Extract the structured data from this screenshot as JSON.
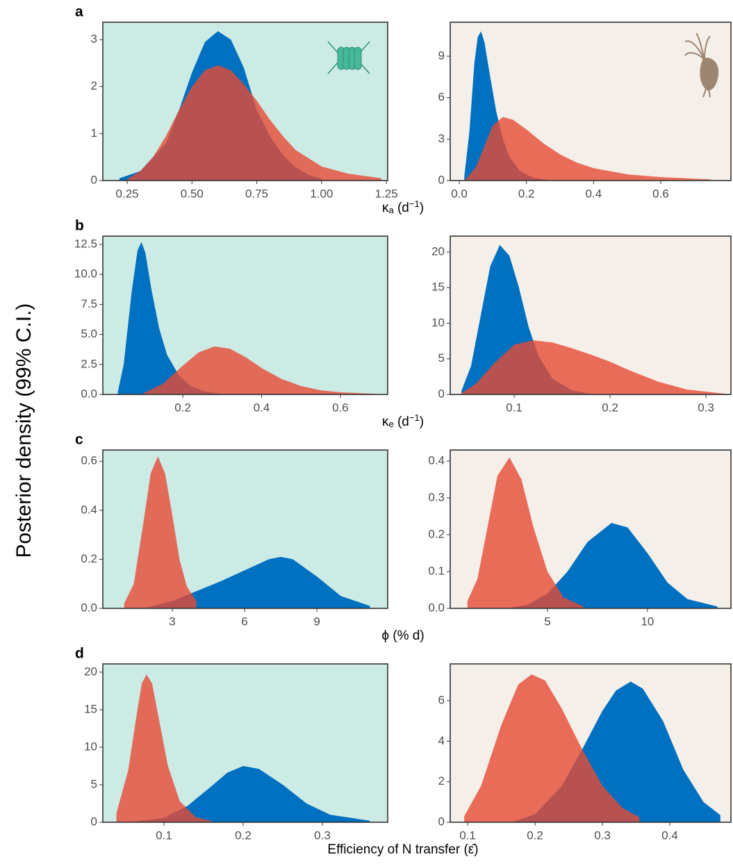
{
  "ylabel": "Posterior density (99% C.I.)",
  "row_labels": [
    "a",
    "b",
    "c",
    "d"
  ],
  "row_xlabels": [
    [
      {
        "text": "κ"
      },
      {
        "text": "a",
        "style": "sub"
      },
      {
        "text": " (d"
      },
      {
        "text": "−1",
        "style": "sup"
      },
      {
        "text": ")"
      }
    ],
    [
      {
        "text": "κ"
      },
      {
        "text": "e",
        "style": "sub"
      },
      {
        "text": " (d"
      },
      {
        "text": "−1",
        "style": "sup"
      },
      {
        "text": ")"
      }
    ],
    [
      {
        "text": "ϕ (% d)"
      }
    ],
    [
      {
        "text": "Efficiency of N transfer (ε̄)"
      }
    ]
  ],
  "chart_data": [
    {
      "type": "area",
      "background": "#cdebe5",
      "xlim": [
        0.156,
        1.255
      ],
      "ylim": [
        0,
        3.37
      ],
      "xticks": [
        {
          "value": 0.25,
          "label": "0.25"
        },
        {
          "value": 0.5,
          "label": "0.50"
        },
        0.75,
        {
          "value": 1,
          "label": "1.00"
        },
        1.25
      ],
      "yticks": [
        0,
        1,
        2,
        3
      ],
      "series": [
        {
          "color": "#0070c0",
          "x": [
            0.22,
            0.3,
            0.4,
            0.45,
            0.5,
            0.55,
            0.6,
            0.65,
            0.7,
            0.75,
            0.8,
            0.85,
            0.9,
            0.95,
            1.0
          ],
          "values": [
            0.05,
            0.2,
            0.8,
            1.5,
            2.3,
            2.95,
            3.18,
            3.0,
            2.4,
            1.5,
            0.95,
            0.55,
            0.28,
            0.12,
            0.04
          ]
        },
        {
          "color": "#e64b35",
          "x": [
            0.25,
            0.3,
            0.35,
            0.4,
            0.45,
            0.5,
            0.55,
            0.6,
            0.65,
            0.7,
            0.75,
            0.8,
            0.85,
            0.9,
            1.0,
            1.1,
            1.23
          ],
          "values": [
            0.03,
            0.2,
            0.5,
            0.95,
            1.5,
            2.0,
            2.35,
            2.45,
            2.35,
            2.05,
            1.7,
            1.3,
            0.95,
            0.65,
            0.3,
            0.15,
            0.05
          ]
        }
      ]
    },
    {
      "type": "area",
      "background": "#f4efe9",
      "xlim": [
        -0.027,
        0.809
      ],
      "ylim": [
        0,
        11.46
      ],
      "xticks": [
        {
          "value": 0,
          "label": "0.0"
        },
        0.2,
        0.4,
        0.6
      ],
      "yticks": [
        0,
        3,
        6,
        9
      ],
      "series": [
        {
          "color": "#0070c0",
          "x": [
            0.015,
            0.03,
            0.045,
            0.055,
            0.065,
            0.075,
            0.09,
            0.11,
            0.13,
            0.15,
            0.18,
            0.22,
            0.27
          ],
          "values": [
            0.3,
            3.5,
            8.5,
            10.4,
            10.8,
            10.0,
            7.8,
            5.0,
            3.0,
            1.7,
            0.7,
            0.2,
            0.03
          ]
        },
        {
          "color": "#e64b35",
          "x": [
            0.02,
            0.05,
            0.08,
            0.1,
            0.13,
            0.16,
            0.2,
            0.25,
            0.3,
            0.35,
            0.4,
            0.5,
            0.6,
            0.75
          ],
          "values": [
            0.1,
            1.0,
            2.8,
            4.0,
            4.6,
            4.4,
            3.7,
            2.7,
            1.9,
            1.3,
            0.9,
            0.45,
            0.25,
            0.08
          ]
        }
      ]
    },
    {
      "type": "area",
      "background": "#cdebe5",
      "xlim": [
        -0.003,
        0.72
      ],
      "ylim": [
        0,
        13.19
      ],
      "xticks": [
        0.2,
        0.4,
        0.6
      ],
      "yticks": [
        {
          "value": 0,
          "label": "0.0"
        },
        2.5,
        {
          "value": 5,
          "label": "5.0"
        },
        7.5,
        {
          "value": 10,
          "label": "10.0"
        },
        12.5
      ],
      "series": [
        {
          "color": "#0070c0",
          "x": [
            0.035,
            0.05,
            0.07,
            0.085,
            0.095,
            0.105,
            0.12,
            0.14,
            0.16,
            0.19,
            0.22,
            0.26,
            0.3
          ],
          "values": [
            0.2,
            2.5,
            8.5,
            12.0,
            12.7,
            11.8,
            8.8,
            5.5,
            3.3,
            1.6,
            0.7,
            0.2,
            0.05
          ]
        },
        {
          "color": "#e64b35",
          "x": [
            0.1,
            0.15,
            0.2,
            0.24,
            0.28,
            0.32,
            0.36,
            0.4,
            0.45,
            0.5,
            0.55,
            0.6,
            0.69
          ],
          "values": [
            0.1,
            0.9,
            2.4,
            3.5,
            4.0,
            3.8,
            3.1,
            2.2,
            1.3,
            0.7,
            0.35,
            0.18,
            0.05
          ]
        }
      ]
    },
    {
      "type": "area",
      "background": "#f4efe9",
      "xlim": [
        0.0333,
        0.326
      ],
      "ylim": [
        0,
        22.24
      ],
      "xticks": [
        0.1,
        0.2,
        0.3
      ],
      "yticks": [
        0,
        5,
        10,
        15,
        20
      ],
      "series": [
        {
          "color": "#0070c0",
          "x": [
            0.045,
            0.055,
            0.065,
            0.075,
            0.085,
            0.095,
            0.105,
            0.115,
            0.125,
            0.14,
            0.16,
            0.18
          ],
          "values": [
            0.5,
            4,
            11,
            18,
            21,
            19.5,
            15,
            9.5,
            5.5,
            2.2,
            0.6,
            0.1
          ]
        },
        {
          "color": "#e64b35",
          "x": [
            0.045,
            0.06,
            0.08,
            0.1,
            0.12,
            0.14,
            0.16,
            0.18,
            0.2,
            0.22,
            0.25,
            0.28,
            0.32
          ],
          "values": [
            0.2,
            1.5,
            4.5,
            7.0,
            7.6,
            7.3,
            6.5,
            5.6,
            4.6,
            3.4,
            1.8,
            0.7,
            0.1
          ]
        }
      ]
    },
    {
      "type": "area",
      "background": "#cdebe5",
      "xlim": [
        0.115,
        11.94
      ],
      "ylim": [
        0,
        0.646
      ],
      "xticks": [
        3,
        6,
        9
      ],
      "yticks": [
        {
          "value": 0,
          "label": "0.0"
        },
        0.2,
        0.4,
        0.6
      ],
      "series": [
        {
          "color": "#0070c0",
          "x": [
            1.8,
            3,
            4,
            5,
            6,
            7,
            7.5,
            8,
            9,
            10,
            11.2
          ],
          "values": [
            0.0,
            0.03,
            0.07,
            0.11,
            0.155,
            0.2,
            0.21,
            0.2,
            0.13,
            0.05,
            0.01
          ]
        },
        {
          "color": "#e64b35",
          "x": [
            1.0,
            1.4,
            1.8,
            2.1,
            2.4,
            2.7,
            3.0,
            3.3,
            3.6,
            4.0
          ],
          "values": [
            0.02,
            0.1,
            0.35,
            0.55,
            0.62,
            0.55,
            0.38,
            0.2,
            0.09,
            0.03
          ]
        }
      ]
    },
    {
      "type": "area",
      "background": "#f4efe9",
      "xlim": [
        0.139,
        14.17
      ],
      "ylim": [
        0,
        0.43
      ],
      "xticks": [
        5,
        10
      ],
      "yticks": [
        {
          "value": 0,
          "label": "0.0"
        },
        0.1,
        0.2,
        0.3,
        0.4
      ],
      "series": [
        {
          "color": "#0070c0",
          "x": [
            3,
            4,
            5,
            6,
            7,
            8.2,
            9,
            10,
            11,
            12,
            13.5
          ],
          "values": [
            0.0,
            0.01,
            0.04,
            0.1,
            0.18,
            0.232,
            0.22,
            0.15,
            0.07,
            0.025,
            0.005
          ]
        },
        {
          "color": "#e64b35",
          "x": [
            1.0,
            1.5,
            2.0,
            2.5,
            3.1,
            3.7,
            4.3,
            5.0,
            5.8,
            6.8
          ],
          "values": [
            0.02,
            0.08,
            0.22,
            0.36,
            0.41,
            0.35,
            0.22,
            0.1,
            0.03,
            0.005
          ]
        }
      ]
    },
    {
      "type": "area",
      "background": "#cdebe5",
      "xlim": [
        0.0228,
        0.3825
      ],
      "ylim": [
        0,
        21.1
      ],
      "xticks": [
        0.1,
        0.2,
        0.3
      ],
      "yticks": [
        0,
        5,
        10,
        15,
        20
      ],
      "series": [
        {
          "color": "#0070c0",
          "x": [
            0.06,
            0.1,
            0.13,
            0.16,
            0.18,
            0.2,
            0.22,
            0.25,
            0.28,
            0.31,
            0.36
          ],
          "values": [
            0.05,
            0.6,
            2.2,
            4.8,
            6.6,
            7.5,
            7.1,
            5.0,
            2.5,
            1.0,
            0.2
          ]
        },
        {
          "color": "#e64b35",
          "x": [
            0.04,
            0.055,
            0.065,
            0.072,
            0.078,
            0.085,
            0.095,
            0.105,
            0.12,
            0.14,
            0.16
          ],
          "values": [
            1.2,
            7,
            14,
            18.5,
            19.7,
            18.5,
            13,
            7.5,
            2.8,
            0.7,
            0.15
          ]
        }
      ]
    },
    {
      "type": "area",
      "background": "#f4efe9",
      "xlim": [
        0.0742,
        0.4907
      ],
      "ylim": [
        0,
        7.82
      ],
      "xticks": [
        0.1,
        0.2,
        0.3,
        0.4
      ],
      "yticks": [
        0,
        2,
        4,
        6
      ],
      "series": [
        {
          "color": "#0070c0",
          "x": [
            0.17,
            0.2,
            0.24,
            0.27,
            0.3,
            0.32,
            0.342,
            0.36,
            0.39,
            0.42,
            0.45,
            0.475
          ],
          "values": [
            0.05,
            0.4,
            1.8,
            3.6,
            5.5,
            6.5,
            6.95,
            6.6,
            5.0,
            2.6,
            1.0,
            0.35
          ]
        },
        {
          "color": "#e64b35",
          "x": [
            0.095,
            0.12,
            0.15,
            0.175,
            0.195,
            0.215,
            0.24,
            0.27,
            0.3,
            0.33,
            0.355
          ],
          "values": [
            0.3,
            1.8,
            4.8,
            6.8,
            7.3,
            7.0,
            5.6,
            3.6,
            1.8,
            0.7,
            0.25
          ]
        }
      ]
    }
  ]
}
